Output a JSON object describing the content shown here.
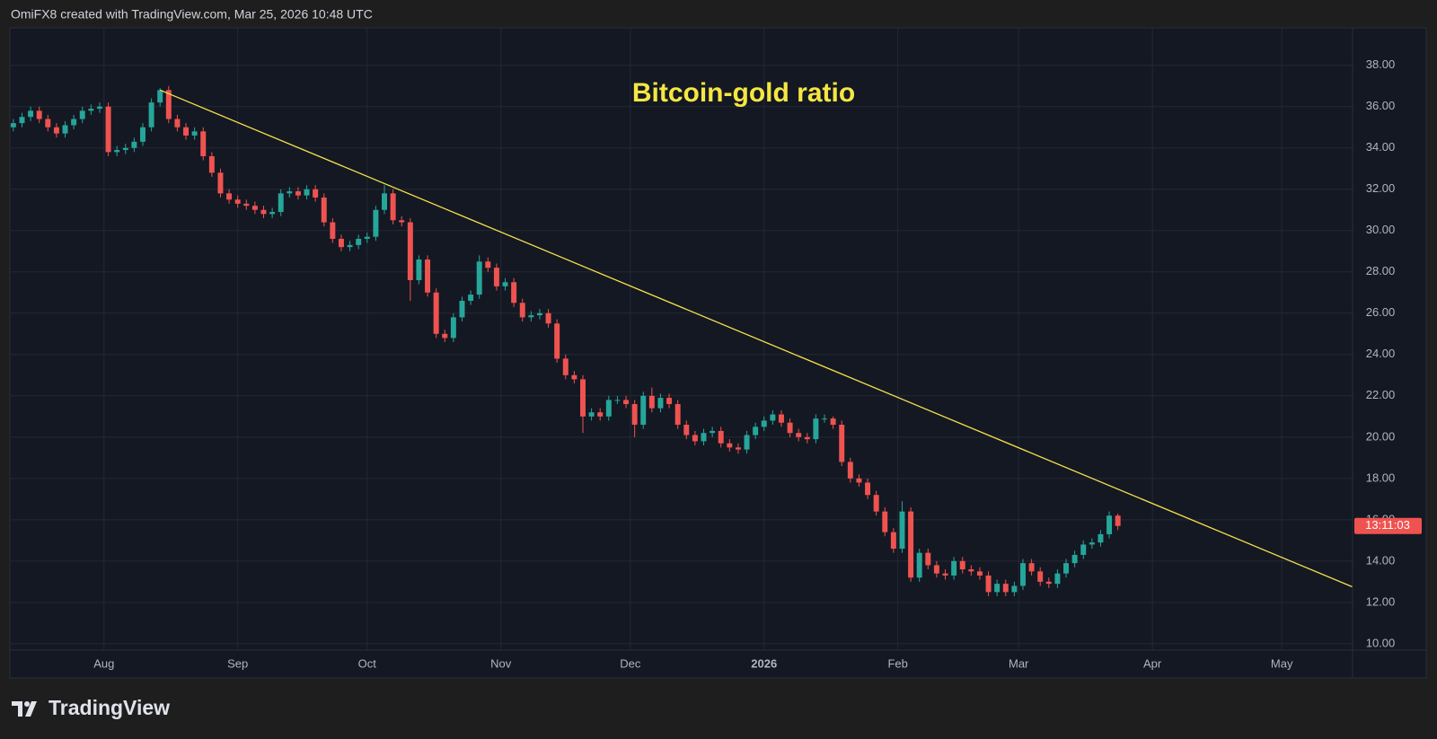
{
  "header": "OmiFX8 created with TradingView.com, Mar 25, 2026 10:48 UTC",
  "brand": "TradingView",
  "chart_data": {
    "type": "candlestick",
    "title": "Bitcoin-gold ratio",
    "countdown": "13:11:03",
    "up_color": "#26a69a",
    "down_color": "#ef5350",
    "grid": true,
    "xlim": [
      -0.3,
      155.2
    ],
    "xticks": [
      {
        "value": 10.5,
        "label": "Aug"
      },
      {
        "value": 26,
        "label": "Sep"
      },
      {
        "value": 41,
        "label": "Oct"
      },
      {
        "value": 56.5,
        "label": "Nov"
      },
      {
        "value": 71.5,
        "label": "Dec"
      },
      {
        "value": 87,
        "label": "2026"
      },
      {
        "value": 102.5,
        "label": "Feb"
      },
      {
        "value": 116.5,
        "label": "Mar"
      },
      {
        "value": 132,
        "label": "Apr"
      },
      {
        "value": 147,
        "label": "May"
      }
    ],
    "ylim": [
      9.69,
      39.77
    ],
    "yticks": [
      {
        "value": 10,
        "label": "10.00"
      },
      {
        "value": 12,
        "label": "12.00"
      },
      {
        "value": 14,
        "label": "14.00"
      },
      {
        "value": 16,
        "label": "16.00"
      },
      {
        "value": 18,
        "label": "18.00"
      },
      {
        "value": 20,
        "label": "20.00"
      },
      {
        "value": 22,
        "label": "22.00"
      },
      {
        "value": 24,
        "label": "24.00"
      },
      {
        "value": 26,
        "label": "26.00"
      },
      {
        "value": 28,
        "label": "28.00"
      },
      {
        "value": 30,
        "label": "30.00"
      },
      {
        "value": 32,
        "label": "32.00"
      },
      {
        "value": 34,
        "label": "34.00"
      },
      {
        "value": 36,
        "label": "36.00"
      },
      {
        "value": 38,
        "label": "38.00"
      }
    ],
    "trend_line": {
      "x": [
        17,
        155.2
      ],
      "values": [
        36.8,
        12.75
      ],
      "color": "#f5e14a"
    },
    "ohlc": [
      [
        35.0,
        35.4,
        34.8,
        35.2
      ],
      [
        35.2,
        35.7,
        35.0,
        35.5
      ],
      [
        35.5,
        36.0,
        35.3,
        35.8
      ],
      [
        35.8,
        36.0,
        35.2,
        35.4
      ],
      [
        35.4,
        35.6,
        34.8,
        35.0
      ],
      [
        35.0,
        35.2,
        34.5,
        34.7
      ],
      [
        34.7,
        35.3,
        34.5,
        35.1
      ],
      [
        35.1,
        35.6,
        34.9,
        35.4
      ],
      [
        35.4,
        36.0,
        35.2,
        35.8
      ],
      [
        35.8,
        36.1,
        35.6,
        35.9
      ],
      [
        35.9,
        36.2,
        35.7,
        36.0
      ],
      [
        36.0,
        36.2,
        33.6,
        33.8
      ],
      [
        33.8,
        34.1,
        33.6,
        33.9
      ],
      [
        33.9,
        34.2,
        33.7,
        34.0
      ],
      [
        34.0,
        34.5,
        33.8,
        34.3
      ],
      [
        34.3,
        35.2,
        34.1,
        35.0
      ],
      [
        35.0,
        36.4,
        34.8,
        36.2
      ],
      [
        36.2,
        36.9,
        36.0,
        36.8
      ],
      [
        36.8,
        37.0,
        35.2,
        35.4
      ],
      [
        35.4,
        35.6,
        34.8,
        35.0
      ],
      [
        35.0,
        35.2,
        34.4,
        34.6
      ],
      [
        34.6,
        35.0,
        34.4,
        34.8
      ],
      [
        34.8,
        35.0,
        33.4,
        33.6
      ],
      [
        33.6,
        33.8,
        32.6,
        32.8
      ],
      [
        32.8,
        33.0,
        31.6,
        31.8
      ],
      [
        31.8,
        32.0,
        31.3,
        31.5
      ],
      [
        31.5,
        31.7,
        31.1,
        31.3
      ],
      [
        31.3,
        31.5,
        31.0,
        31.2
      ],
      [
        31.2,
        31.4,
        30.8,
        31.0
      ],
      [
        31.0,
        31.2,
        30.6,
        30.8
      ],
      [
        30.8,
        31.1,
        30.6,
        30.9
      ],
      [
        30.9,
        32.0,
        30.7,
        31.8
      ],
      [
        31.8,
        32.1,
        31.6,
        31.9
      ],
      [
        31.9,
        32.1,
        31.5,
        31.7
      ],
      [
        31.7,
        32.2,
        31.5,
        32.0
      ],
      [
        32.0,
        32.2,
        31.4,
        31.6
      ],
      [
        31.6,
        31.8,
        30.2,
        30.4
      ],
      [
        30.4,
        30.6,
        29.4,
        29.6
      ],
      [
        29.6,
        29.8,
        29.0,
        29.2
      ],
      [
        29.2,
        29.5,
        29.0,
        29.3
      ],
      [
        29.3,
        29.8,
        29.1,
        29.6
      ],
      [
        29.6,
        29.9,
        29.4,
        29.7
      ],
      [
        29.7,
        31.2,
        29.5,
        31.0
      ],
      [
        31.0,
        32.2,
        30.8,
        31.8
      ],
      [
        31.8,
        32.0,
        30.3,
        30.5
      ],
      [
        30.5,
        30.7,
        30.2,
        30.4
      ],
      [
        30.4,
        30.6,
        26.6,
        27.6
      ],
      [
        27.6,
        28.8,
        27.4,
        28.6
      ],
      [
        28.6,
        28.8,
        26.8,
        27.0
      ],
      [
        27.0,
        27.2,
        24.8,
        25.0
      ],
      [
        25.0,
        25.2,
        24.6,
        24.8
      ],
      [
        24.8,
        26.0,
        24.6,
        25.8
      ],
      [
        25.8,
        26.8,
        25.6,
        26.6
      ],
      [
        26.6,
        27.1,
        26.4,
        26.9
      ],
      [
        26.9,
        28.8,
        26.7,
        28.5
      ],
      [
        28.5,
        28.7,
        28.0,
        28.2
      ],
      [
        28.2,
        28.4,
        27.1,
        27.3
      ],
      [
        27.3,
        27.7,
        27.1,
        27.5
      ],
      [
        27.5,
        27.7,
        26.3,
        26.5
      ],
      [
        26.5,
        26.7,
        25.6,
        25.8
      ],
      [
        25.8,
        26.1,
        25.6,
        25.9
      ],
      [
        25.9,
        26.2,
        25.7,
        26.0
      ],
      [
        26.0,
        26.2,
        25.3,
        25.5
      ],
      [
        25.5,
        25.7,
        23.6,
        23.8
      ],
      [
        23.8,
        24.0,
        22.8,
        23.0
      ],
      [
        23.0,
        23.2,
        22.6,
        22.8
      ],
      [
        22.8,
        23.0,
        20.2,
        21.0
      ],
      [
        21.0,
        21.4,
        20.8,
        21.2
      ],
      [
        21.2,
        21.4,
        20.8,
        21.0
      ],
      [
        21.0,
        22.0,
        20.8,
        21.8
      ],
      [
        21.8,
        22.0,
        21.6,
        21.8
      ],
      [
        21.8,
        22.0,
        21.4,
        21.6
      ],
      [
        21.6,
        21.8,
        20.0,
        20.6
      ],
      [
        20.6,
        22.2,
        20.4,
        22.0
      ],
      [
        22.0,
        22.4,
        21.2,
        21.4
      ],
      [
        21.4,
        22.1,
        21.2,
        21.9
      ],
      [
        21.9,
        22.1,
        21.4,
        21.6
      ],
      [
        21.6,
        21.8,
        20.4,
        20.6
      ],
      [
        20.6,
        20.8,
        19.9,
        20.1
      ],
      [
        20.1,
        20.3,
        19.6,
        19.8
      ],
      [
        19.8,
        20.4,
        19.6,
        20.2
      ],
      [
        20.2,
        20.5,
        20.0,
        20.3
      ],
      [
        20.3,
        20.5,
        19.5,
        19.7
      ],
      [
        19.7,
        19.9,
        19.3,
        19.5
      ],
      [
        19.5,
        19.7,
        19.2,
        19.4
      ],
      [
        19.4,
        20.3,
        19.2,
        20.1
      ],
      [
        20.1,
        20.7,
        19.9,
        20.5
      ],
      [
        20.5,
        21.0,
        20.3,
        20.8
      ],
      [
        20.8,
        21.3,
        20.6,
        21.1
      ],
      [
        21.1,
        21.3,
        20.5,
        20.7
      ],
      [
        20.7,
        20.9,
        20.0,
        20.2
      ],
      [
        20.2,
        20.4,
        19.8,
        20.0
      ],
      [
        20.0,
        20.2,
        19.7,
        19.9
      ],
      [
        19.9,
        21.1,
        19.7,
        20.9
      ],
      [
        20.9,
        21.1,
        20.7,
        20.9
      ],
      [
        20.9,
        21.0,
        20.4,
        20.6
      ],
      [
        20.6,
        20.8,
        18.6,
        18.8
      ],
      [
        18.8,
        19.0,
        17.8,
        18.0
      ],
      [
        18.0,
        18.2,
        17.6,
        17.8
      ],
      [
        17.8,
        18.0,
        17.0,
        17.2
      ],
      [
        17.2,
        17.4,
        16.2,
        16.4
      ],
      [
        16.4,
        16.6,
        15.2,
        15.4
      ],
      [
        15.4,
        15.6,
        14.4,
        14.6
      ],
      [
        14.6,
        16.9,
        14.4,
        16.4
      ],
      [
        16.4,
        16.6,
        13.0,
        13.2
      ],
      [
        13.2,
        14.6,
        13.0,
        14.4
      ],
      [
        14.4,
        14.6,
        13.6,
        13.8
      ],
      [
        13.8,
        14.0,
        13.2,
        13.4
      ],
      [
        13.4,
        13.6,
        13.1,
        13.3
      ],
      [
        13.3,
        14.2,
        13.1,
        14.0
      ],
      [
        14.0,
        14.2,
        13.4,
        13.6
      ],
      [
        13.6,
        13.8,
        13.3,
        13.5
      ],
      [
        13.5,
        13.7,
        13.1,
        13.3
      ],
      [
        13.3,
        13.5,
        12.3,
        12.5
      ],
      [
        12.5,
        13.1,
        12.3,
        12.9
      ],
      [
        12.9,
        13.1,
        12.3,
        12.5
      ],
      [
        12.5,
        13.0,
        12.3,
        12.8
      ],
      [
        12.8,
        14.1,
        12.6,
        13.9
      ],
      [
        13.9,
        14.1,
        13.3,
        13.5
      ],
      [
        13.5,
        13.7,
        12.8,
        13.0
      ],
      [
        13.0,
        13.2,
        12.7,
        12.9
      ],
      [
        12.9,
        13.6,
        12.7,
        13.4
      ],
      [
        13.4,
        14.1,
        13.2,
        13.9
      ],
      [
        13.9,
        14.5,
        13.7,
        14.3
      ],
      [
        14.3,
        15.0,
        14.1,
        14.8
      ],
      [
        14.8,
        15.1,
        14.6,
        14.9
      ],
      [
        14.9,
        15.5,
        14.7,
        15.3
      ],
      [
        15.3,
        16.4,
        15.1,
        16.2
      ],
      [
        16.2,
        16.3,
        15.5,
        15.7
      ]
    ]
  }
}
